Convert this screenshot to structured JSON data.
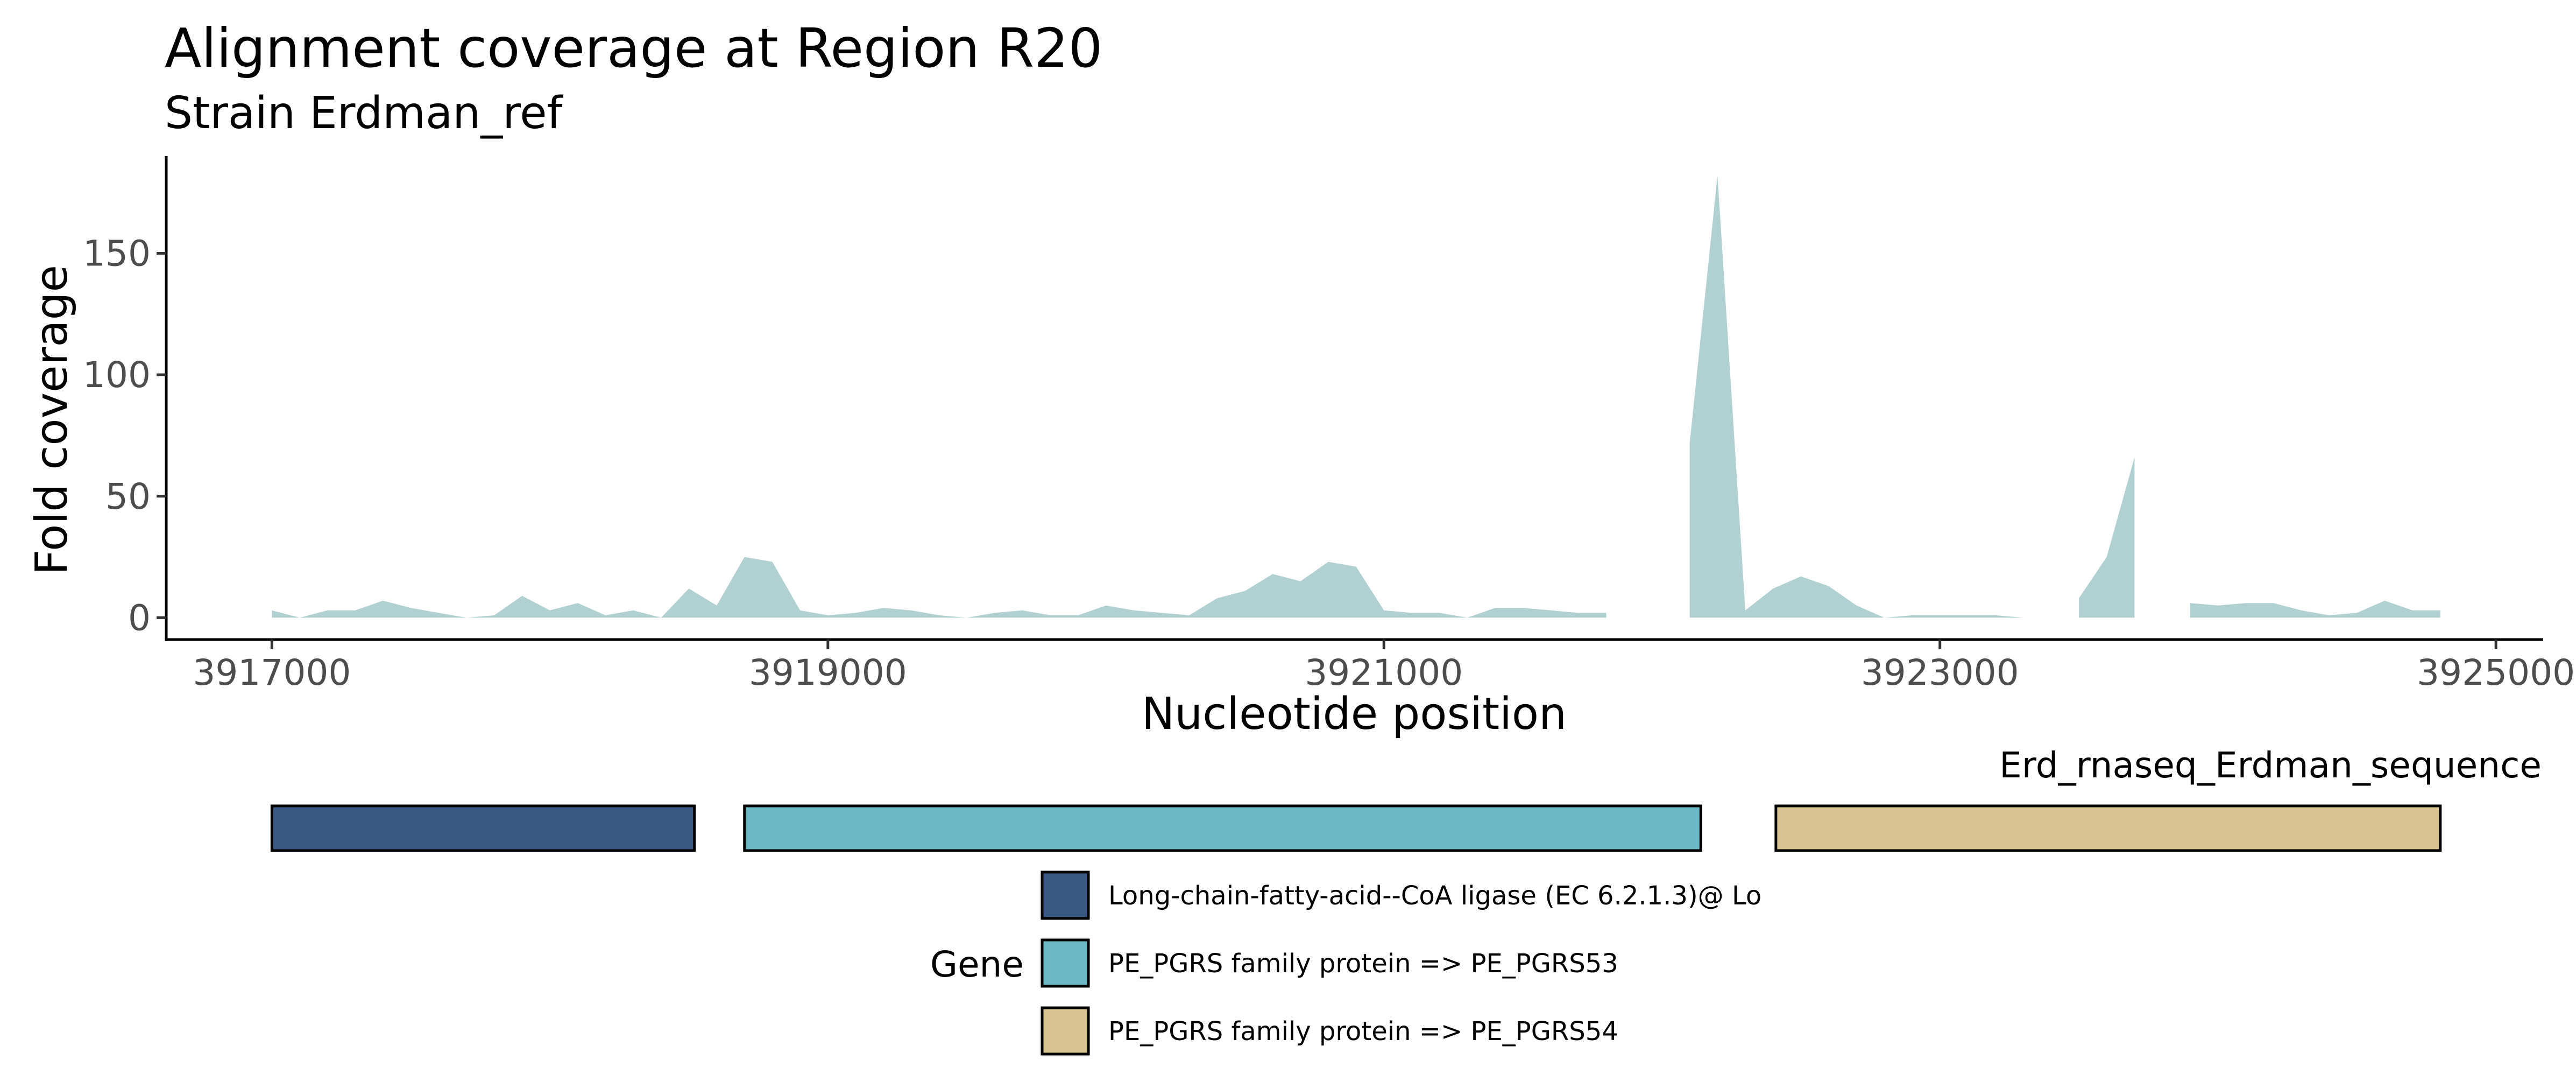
{
  "chart_data": {
    "type": "area",
    "title": "Alignment coverage at Region R20",
    "subtitle": "Strain Erdman_ref",
    "xlabel": "Nucleotide position",
    "ylabel": "Fold coverage",
    "xlim": [
      3916620,
      3925170
    ],
    "ylim": [
      -9,
      190
    ],
    "x_ticks": [
      {
        "value": 3917000,
        "label": "3917000"
      },
      {
        "value": 3919000,
        "label": "3919000"
      },
      {
        "value": 3921000,
        "label": "3921000"
      },
      {
        "value": 3923000,
        "label": "3923000"
      },
      {
        "value": 3925000,
        "label": "3925000"
      }
    ],
    "y_ticks": [
      {
        "value": 0,
        "label": "0"
      },
      {
        "value": 50,
        "label": "50"
      },
      {
        "value": 100,
        "label": "100"
      },
      {
        "value": 150,
        "label": "150"
      }
    ],
    "grid": false,
    "fill_color": "#b0d0d2",
    "coverage_segments": [
      {
        "x": [
          3917000,
          3917100,
          3917200,
          3917300,
          3917400,
          3917500,
          3917600,
          3917700,
          3917800,
          3917900,
          3918000,
          3918100,
          3918200,
          3918300,
          3918400,
          3918500,
          3918600,
          3918700,
          3918800,
          3918900,
          3919000,
          3919100,
          3919200,
          3919300,
          3919400,
          3919500,
          3919600,
          3919700,
          3919800,
          3919900,
          3920000,
          3920100,
          3920200,
          3920300,
          3920400,
          3920500,
          3920600,
          3920700,
          3920800,
          3920900,
          3921000,
          3921100,
          3921200,
          3921300,
          3921400,
          3921500,
          3921600,
          3921700,
          3921800
        ],
        "y": [
          3,
          0,
          3,
          3,
          7,
          4,
          2,
          0,
          1,
          9,
          3,
          6,
          1,
          3,
          0,
          12,
          5,
          25,
          23,
          3,
          1,
          2,
          4,
          3,
          1,
          0,
          2,
          3,
          1,
          1,
          5,
          3,
          2,
          1,
          8,
          11,
          18,
          15,
          23,
          21,
          3,
          2,
          2,
          0,
          4,
          4,
          3,
          2,
          2
        ]
      },
      {
        "x": [
          3922100,
          3922100,
          3922200,
          3922300,
          3922400,
          3922500,
          3922600,
          3922700,
          3922800,
          3922900,
          3923000,
          3923100,
          3923200,
          3923300
        ],
        "y": [
          0,
          72,
          182,
          3,
          12,
          17,
          13,
          5,
          0,
          1,
          1,
          1,
          1,
          0
        ]
      },
      {
        "x": [
          3923500,
          3923600,
          3923700,
          3923700
        ],
        "y": [
          8,
          25,
          66,
          0
        ]
      },
      {
        "x": [
          3923900,
          3924000,
          3924100,
          3924200,
          3924300,
          3924400,
          3924500,
          3924600,
          3924700,
          3924800
        ],
        "y": [
          6,
          5,
          6,
          6,
          3,
          1,
          2,
          7,
          3,
          3
        ]
      }
    ],
    "track_label": "Erd_rnaseq_Erdman_sequence",
    "genes": [
      {
        "name": "Long-chain-fatty-acid--CoA ligase (EC 6.2.1.3)@ Lo",
        "start": 3917000,
        "end": 3918520,
        "color": "#3a5a85"
      },
      {
        "name": "PE_PGRS family protein => PE_PGRS53",
        "start": 3918700,
        "end": 3922140,
        "color": "#6cb9c5"
      },
      {
        "name": "PE_PGRS family protein => PE_PGRS54",
        "start": 3922410,
        "end": 3924800,
        "color": "#d9c390"
      }
    ],
    "legend": {
      "title": "Gene",
      "position": "bottom"
    }
  }
}
